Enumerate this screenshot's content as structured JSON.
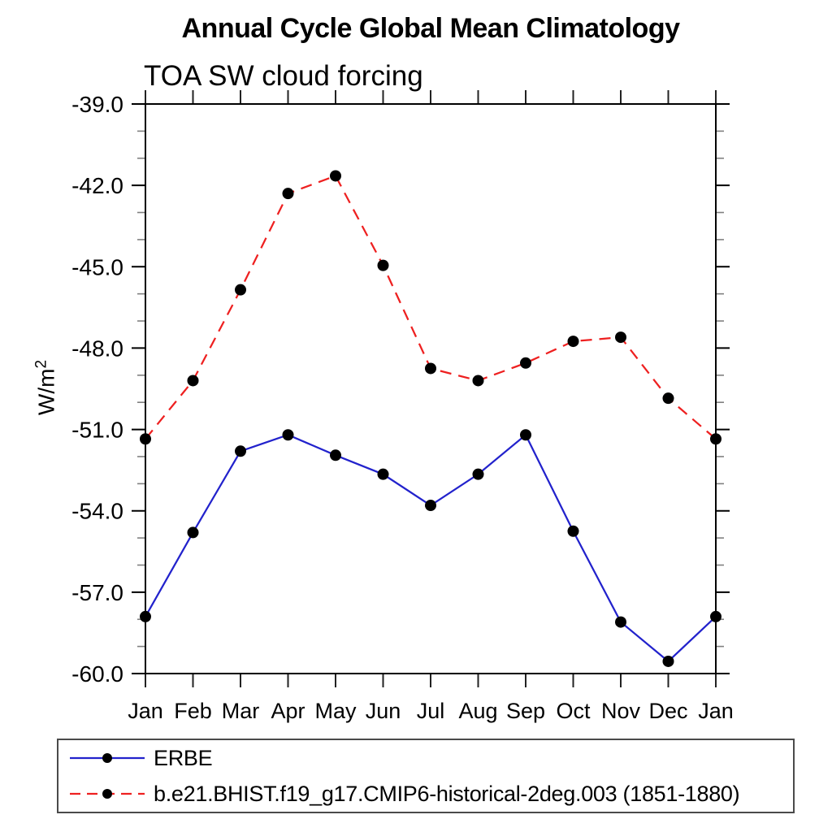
{
  "title": "Annual Cycle Global Mean Climatology",
  "subtitle": "TOA SW cloud forcing",
  "ylabel": {
    "base": "W/m",
    "exponent": "2"
  },
  "legend": {
    "position": "bottom-left",
    "items": [
      {
        "label": "ERBE",
        "color": "#2222cc",
        "line_style": "solid",
        "marker": "filled-circle"
      },
      {
        "label": "b.e21.BHIST.f19_g17.CMIP6-historical-2deg.003 (1851-1880)",
        "color": "#ee2020",
        "line_style": "dashed",
        "marker": "filled-circle"
      }
    ]
  },
  "chart_data": {
    "type": "line",
    "title": "Annual Cycle Global Mean Climatology",
    "subtitle": "TOA SW cloud forcing",
    "ylabel": "W/m^2",
    "xlabel": "",
    "grid": false,
    "legend_position": "bottom-left",
    "x_categories": [
      "Jan",
      "Feb",
      "Mar",
      "Apr",
      "May",
      "Jun",
      "Jul",
      "Aug",
      "Sep",
      "Oct",
      "Nov",
      "Dec",
      "Jan"
    ],
    "ylim": [
      -60.0,
      -39.0
    ],
    "ytick_major_values": [
      -39,
      -42,
      -45,
      -48,
      -51,
      -54,
      -57,
      -60
    ],
    "ytick_major_labels": [
      "-39.0",
      "-42.0",
      "-45.0",
      "-48.0",
      "-51.0",
      "-54.0",
      "-57.0",
      "-60.0"
    ],
    "ytick_minor_step": 1,
    "series": [
      {
        "name": "ERBE",
        "color": "#2222cc",
        "line_style": "solid",
        "marker": "filled-circle",
        "marker_color": "#000000",
        "values": [
          -57.9,
          -54.8,
          -51.8,
          -51.2,
          -51.95,
          -52.65,
          -53.8,
          -52.65,
          -51.2,
          -54.75,
          -58.1,
          -59.55,
          -57.9
        ]
      },
      {
        "name": "b.e21.BHIST.f19_g17.CMIP6-historical-2deg.003 (1851-1880)",
        "color": "#ee2020",
        "line_style": "dashed",
        "marker": "filled-circle",
        "marker_color": "#000000",
        "values": [
          -51.35,
          -49.2,
          -45.85,
          -42.3,
          -41.65,
          -44.95,
          -48.75,
          -49.2,
          -48.55,
          -47.75,
          -47.6,
          -49.85,
          -51.35
        ]
      }
    ]
  }
}
